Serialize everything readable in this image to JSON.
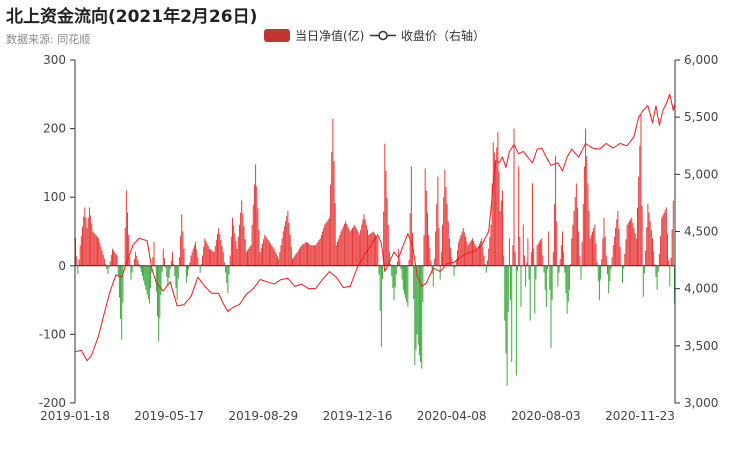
{
  "title": "北上资金流向(2021年2月26日)",
  "subtitle": "数据来源: 同花顺",
  "chart_data": {
    "type": "bar+line",
    "legend": {
      "placement": "top-center",
      "bar_label": "当日净值(亿)",
      "line_label": "收盘价（右轴）"
    },
    "colors": {
      "positive": "#e83c3c",
      "negative": "#3ea83e",
      "line": "#ee1c1c",
      "legend_bar": "#c23531",
      "axis": "#333333"
    },
    "x_ticks": [
      "2019-01-18",
      "2019-05-17",
      "2019-08-29",
      "2019-12-16",
      "2020-04-08",
      "2020-08-03",
      "2020-11-23"
    ],
    "left_axis": {
      "ylim": [
        -200,
        300
      ],
      "ticks": [
        "300",
        "200",
        "100",
        "0",
        "-100",
        "-200"
      ]
    },
    "right_axis": {
      "ylim": [
        3000,
        6000
      ],
      "ticks": [
        "6,000",
        "5,500",
        "5,000",
        "4,500",
        "4,000",
        "3,500",
        "3,000"
      ]
    },
    "n_days": 520,
    "flow_points": [
      {
        "i": 0,
        "v": 40
      },
      {
        "i": 2,
        "v": -12
      },
      {
        "i": 4,
        "v": 30
      },
      {
        "i": 8,
        "v": 85
      },
      {
        "i": 10,
        "v": 55
      },
      {
        "i": 12,
        "v": 85
      },
      {
        "i": 15,
        "v": 50
      },
      {
        "i": 20,
        "v": 40
      },
      {
        "i": 25,
        "v": 10
      },
      {
        "i": 28,
        "v": -12
      },
      {
        "i": 32,
        "v": 25
      },
      {
        "i": 36,
        "v": 15
      },
      {
        "i": 40,
        "v": -108
      },
      {
        "i": 44,
        "v": 110
      },
      {
        "i": 48,
        "v": -20
      },
      {
        "i": 52,
        "v": 20
      },
      {
        "i": 58,
        "v": -15
      },
      {
        "i": 64,
        "v": -55
      },
      {
        "i": 68,
        "v": 35
      },
      {
        "i": 72,
        "v": -110
      },
      {
        "i": 76,
        "v": 25
      },
      {
        "i": 80,
        "v": -30
      },
      {
        "i": 84,
        "v": 20
      },
      {
        "i": 88,
        "v": -50
      },
      {
        "i": 92,
        "v": 75
      },
      {
        "i": 96,
        "v": -25
      },
      {
        "i": 100,
        "v": 15
      },
      {
        "i": 104,
        "v": 35
      },
      {
        "i": 108,
        "v": -10
      },
      {
        "i": 112,
        "v": 40
      },
      {
        "i": 116,
        "v": 25
      },
      {
        "i": 120,
        "v": 20
      },
      {
        "i": 124,
        "v": 55
      },
      {
        "i": 128,
        "v": 20
      },
      {
        "i": 132,
        "v": -40
      },
      {
        "i": 136,
        "v": 70
      },
      {
        "i": 140,
        "v": 25
      },
      {
        "i": 144,
        "v": 95
      },
      {
        "i": 148,
        "v": 20
      },
      {
        "i": 152,
        "v": 30
      },
      {
        "i": 156,
        "v": 148
      },
      {
        "i": 160,
        "v": 20
      },
      {
        "i": 164,
        "v": 45
      },
      {
        "i": 168,
        "v": 35
      },
      {
        "i": 172,
        "v": 25
      },
      {
        "i": 176,
        "v": 10
      },
      {
        "i": 180,
        "v": 50
      },
      {
        "i": 184,
        "v": 80
      },
      {
        "i": 188,
        "v": 10
      },
      {
        "i": 192,
        "v": 20
      },
      {
        "i": 196,
        "v": 30
      },
      {
        "i": 200,
        "v": 35
      },
      {
        "i": 204,
        "v": 30
      },
      {
        "i": 208,
        "v": 30
      },
      {
        "i": 212,
        "v": 40
      },
      {
        "i": 216,
        "v": 60
      },
      {
        "i": 220,
        "v": 70
      },
      {
        "i": 223,
        "v": 214
      },
      {
        "i": 226,
        "v": 30
      },
      {
        "i": 230,
        "v": 50
      },
      {
        "i": 234,
        "v": 65
      },
      {
        "i": 238,
        "v": 50
      },
      {
        "i": 242,
        "v": 60
      },
      {
        "i": 246,
        "v": 45
      },
      {
        "i": 250,
        "v": 75
      },
      {
        "i": 254,
        "v": 45
      },
      {
        "i": 258,
        "v": 50
      },
      {
        "i": 262,
        "v": 40
      },
      {
        "i": 265,
        "v": -118
      },
      {
        "i": 268,
        "v": 178
      },
      {
        "i": 272,
        "v": 20
      },
      {
        "i": 276,
        "v": -50
      },
      {
        "i": 280,
        "v": 25
      },
      {
        "i": 284,
        "v": -35
      },
      {
        "i": 288,
        "v": -60
      },
      {
        "i": 291,
        "v": 145
      },
      {
        "i": 294,
        "v": -145
      },
      {
        "i": 296,
        "v": -100
      },
      {
        "i": 298,
        "v": -130
      },
      {
        "i": 300,
        "v": -150
      },
      {
        "i": 303,
        "v": 142
      },
      {
        "i": 306,
        "v": 45
      },
      {
        "i": 310,
        "v": -30
      },
      {
        "i": 314,
        "v": 130
      },
      {
        "i": 316,
        "v": -20
      },
      {
        "i": 320,
        "v": 140
      },
      {
        "i": 324,
        "v": 40
      },
      {
        "i": 328,
        "v": -15
      },
      {
        "i": 332,
        "v": 35
      },
      {
        "i": 336,
        "v": 55
      },
      {
        "i": 340,
        "v": 30
      },
      {
        "i": 344,
        "v": 40
      },
      {
        "i": 348,
        "v": 25
      },
      {
        "i": 352,
        "v": 40
      },
      {
        "i": 356,
        "v": -10
      },
      {
        "i": 360,
        "v": 60
      },
      {
        "i": 362,
        "v": 180
      },
      {
        "i": 364,
        "v": 150
      },
      {
        "i": 366,
        "v": 195
      },
      {
        "i": 368,
        "v": 80
      },
      {
        "i": 370,
        "v": 110
      },
      {
        "i": 372,
        "v": -80
      },
      {
        "i": 374,
        "v": -175
      },
      {
        "i": 376,
        "v": 40
      },
      {
        "i": 378,
        "v": -140
      },
      {
        "i": 380,
        "v": 200
      },
      {
        "i": 382,
        "v": -160
      },
      {
        "i": 384,
        "v": 145
      },
      {
        "i": 386,
        "v": -60
      },
      {
        "i": 388,
        "v": 60
      },
      {
        "i": 390,
        "v": -30
      },
      {
        "i": 392,
        "v": 40
      },
      {
        "i": 394,
        "v": -80
      },
      {
        "i": 396,
        "v": 120
      },
      {
        "i": 398,
        "v": -70
      },
      {
        "i": 400,
        "v": 30
      },
      {
        "i": 404,
        "v": 40
      },
      {
        "i": 408,
        "v": -60
      },
      {
        "i": 410,
        "v": 50
      },
      {
        "i": 412,
        "v": -120
      },
      {
        "i": 416,
        "v": 160
      },
      {
        "i": 418,
        "v": -30
      },
      {
        "i": 422,
        "v": 50
      },
      {
        "i": 426,
        "v": -70
      },
      {
        "i": 428,
        "v": -35
      },
      {
        "i": 430,
        "v": 40
      },
      {
        "i": 434,
        "v": 120
      },
      {
        "i": 438,
        "v": -20
      },
      {
        "i": 442,
        "v": 200
      },
      {
        "i": 446,
        "v": 40
      },
      {
        "i": 450,
        "v": 60
      },
      {
        "i": 454,
        "v": -50
      },
      {
        "i": 458,
        "v": 70
      },
      {
        "i": 462,
        "v": -40
      },
      {
        "i": 466,
        "v": 30
      },
      {
        "i": 470,
        "v": 80
      },
      {
        "i": 474,
        "v": -25
      },
      {
        "i": 478,
        "v": 60
      },
      {
        "i": 482,
        "v": 70
      },
      {
        "i": 486,
        "v": 40
      },
      {
        "i": 490,
        "v": 220
      },
      {
        "i": 492,
        "v": -45
      },
      {
        "i": 496,
        "v": 90
      },
      {
        "i": 500,
        "v": 40
      },
      {
        "i": 504,
        "v": -35
      },
      {
        "i": 508,
        "v": 70
      },
      {
        "i": 512,
        "v": 85
      },
      {
        "i": 515,
        "v": -30
      },
      {
        "i": 518,
        "v": 95
      },
      {
        "i": 519,
        "v": -55
      }
    ],
    "close_price_points": [
      {
        "i": 0,
        "v": 3450
      },
      {
        "i": 5,
        "v": 3460
      },
      {
        "i": 10,
        "v": 3370
      },
      {
        "i": 14,
        "v": 3420
      },
      {
        "i": 20,
        "v": 3590
      },
      {
        "i": 25,
        "v": 3790
      },
      {
        "i": 30,
        "v": 3980
      },
      {
        "i": 35,
        "v": 4120
      },
      {
        "i": 40,
        "v": 4100
      },
      {
        "i": 45,
        "v": 4250
      },
      {
        "i": 50,
        "v": 4385
      },
      {
        "i": 55,
        "v": 4440
      },
      {
        "i": 62,
        "v": 4420
      },
      {
        "i": 66,
        "v": 4180
      },
      {
        "i": 70,
        "v": 4050
      },
      {
        "i": 76,
        "v": 3980
      },
      {
        "i": 82,
        "v": 4060
      },
      {
        "i": 88,
        "v": 3850
      },
      {
        "i": 94,
        "v": 3860
      },
      {
        "i": 100,
        "v": 3930
      },
      {
        "i": 106,
        "v": 4100
      },
      {
        "i": 112,
        "v": 4020
      },
      {
        "i": 118,
        "v": 3960
      },
      {
        "i": 124,
        "v": 3960
      },
      {
        "i": 128,
        "v": 3870
      },
      {
        "i": 132,
        "v": 3800
      },
      {
        "i": 137,
        "v": 3840
      },
      {
        "i": 142,
        "v": 3860
      },
      {
        "i": 148,
        "v": 3950
      },
      {
        "i": 154,
        "v": 4000
      },
      {
        "i": 160,
        "v": 4080
      },
      {
        "i": 166,
        "v": 4060
      },
      {
        "i": 172,
        "v": 4040
      },
      {
        "i": 178,
        "v": 4080
      },
      {
        "i": 184,
        "v": 4090
      },
      {
        "i": 190,
        "v": 4020
      },
      {
        "i": 196,
        "v": 4040
      },
      {
        "i": 202,
        "v": 4000
      },
      {
        "i": 208,
        "v": 4000
      },
      {
        "i": 214,
        "v": 4080
      },
      {
        "i": 220,
        "v": 4150
      },
      {
        "i": 226,
        "v": 4100
      },
      {
        "i": 232,
        "v": 4010
      },
      {
        "i": 238,
        "v": 4020
      },
      {
        "i": 244,
        "v": 4180
      },
      {
        "i": 250,
        "v": 4290
      },
      {
        "i": 256,
        "v": 4380
      },
      {
        "i": 262,
        "v": 4470
      },
      {
        "i": 265,
        "v": 4400
      },
      {
        "i": 268,
        "v": 4150
      },
      {
        "i": 271,
        "v": 4210
      },
      {
        "i": 276,
        "v": 4320
      },
      {
        "i": 280,
        "v": 4270
      },
      {
        "i": 284,
        "v": 4380
      },
      {
        "i": 288,
        "v": 4480
      },
      {
        "i": 292,
        "v": 4380
      },
      {
        "i": 296,
        "v": 4120
      },
      {
        "i": 300,
        "v": 4020
      },
      {
        "i": 304,
        "v": 4050
      },
      {
        "i": 310,
        "v": 4180
      },
      {
        "i": 316,
        "v": 4150
      },
      {
        "i": 322,
        "v": 4220
      },
      {
        "i": 328,
        "v": 4230
      },
      {
        "i": 334,
        "v": 4280
      },
      {
        "i": 340,
        "v": 4310
      },
      {
        "i": 346,
        "v": 4330
      },
      {
        "i": 352,
        "v": 4380
      },
      {
        "i": 358,
        "v": 4500
      },
      {
        "i": 361,
        "v": 4800
      },
      {
        "i": 364,
        "v": 5120
      },
      {
        "i": 367,
        "v": 5100
      },
      {
        "i": 370,
        "v": 5150
      },
      {
        "i": 373,
        "v": 5060
      },
      {
        "i": 376,
        "v": 5200
      },
      {
        "i": 380,
        "v": 5260
      },
      {
        "i": 384,
        "v": 5180
      },
      {
        "i": 388,
        "v": 5200
      },
      {
        "i": 392,
        "v": 5150
      },
      {
        "i": 396,
        "v": 5100
      },
      {
        "i": 400,
        "v": 5220
      },
      {
        "i": 404,
        "v": 5230
      },
      {
        "i": 408,
        "v": 5150
      },
      {
        "i": 412,
        "v": 5080
      },
      {
        "i": 418,
        "v": 5100
      },
      {
        "i": 422,
        "v": 5030
      },
      {
        "i": 426,
        "v": 5150
      },
      {
        "i": 430,
        "v": 5220
      },
      {
        "i": 436,
        "v": 5150
      },
      {
        "i": 442,
        "v": 5270
      },
      {
        "i": 448,
        "v": 5230
      },
      {
        "i": 454,
        "v": 5220
      },
      {
        "i": 460,
        "v": 5270
      },
      {
        "i": 466,
        "v": 5230
      },
      {
        "i": 472,
        "v": 5270
      },
      {
        "i": 478,
        "v": 5250
      },
      {
        "i": 484,
        "v": 5330
      },
      {
        "i": 488,
        "v": 5500
      },
      {
        "i": 492,
        "v": 5560
      },
      {
        "i": 496,
        "v": 5600
      },
      {
        "i": 500,
        "v": 5450
      },
      {
        "i": 503,
        "v": 5600
      },
      {
        "i": 506,
        "v": 5430
      },
      {
        "i": 509,
        "v": 5560
      },
      {
        "i": 512,
        "v": 5620
      },
      {
        "i": 515,
        "v": 5700
      },
      {
        "i": 518,
        "v": 5560
      },
      {
        "i": 519,
        "v": 5610
      }
    ]
  }
}
